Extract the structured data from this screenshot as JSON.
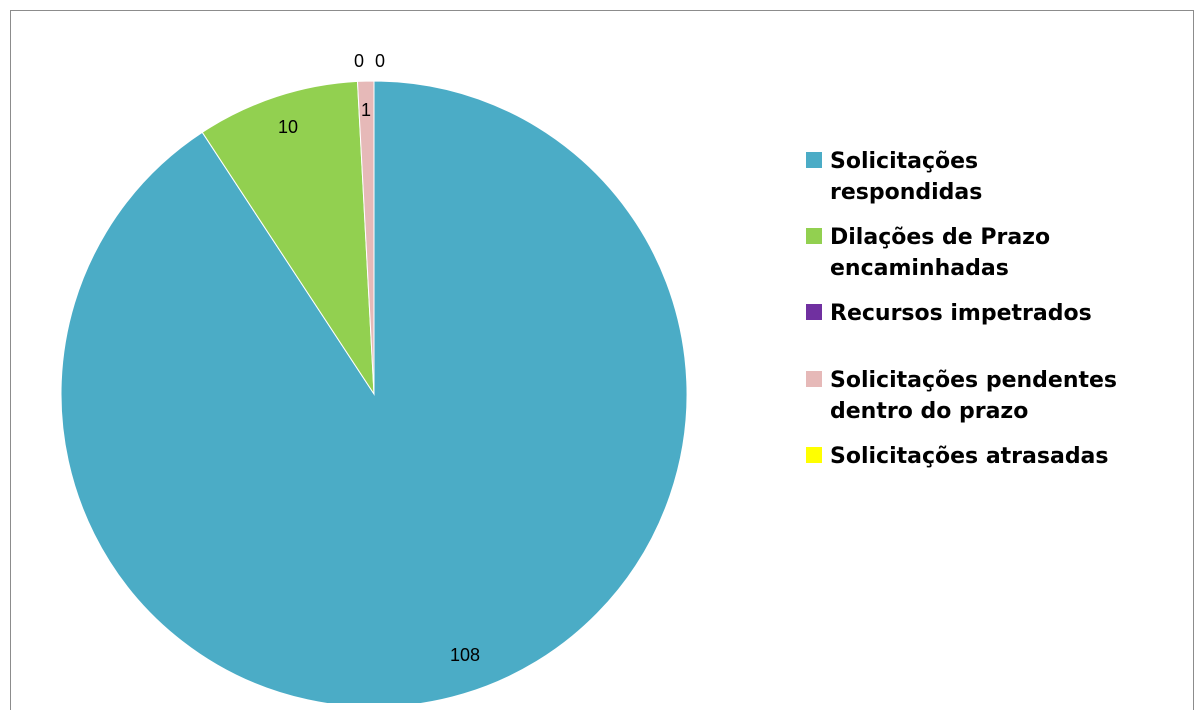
{
  "chart_data": {
    "type": "pie",
    "title": "",
    "categories": [
      "Solicitações respondidas",
      "Dilações de Prazo encaminhadas",
      "Recursos impetrados",
      "Solicitações pendentes dentro do prazo",
      "Solicitações atrasadas"
    ],
    "values": [
      108,
      10,
      0,
      1,
      0
    ],
    "data_labels": [
      "108",
      "10",
      "0",
      "1",
      "0"
    ],
    "colors": [
      "#4bacc6",
      "#92d050",
      "#7030a0",
      "#e6b9b8",
      "#ffff00"
    ],
    "legend_position": "right"
  },
  "legend": {
    "items": [
      {
        "label": "Solicitações respondidas",
        "color": "#4bacc6"
      },
      {
        "label": "Dilações de Prazo encaminhadas",
        "color": "#92d050"
      },
      {
        "label": "Recursos impetrados",
        "color": "#7030a0"
      },
      {
        "label": "Solicitações pendentes dentro do prazo",
        "color": "#e6b9b8"
      },
      {
        "label": "Solicitações atrasadas",
        "color": "#ffff00"
      }
    ]
  }
}
